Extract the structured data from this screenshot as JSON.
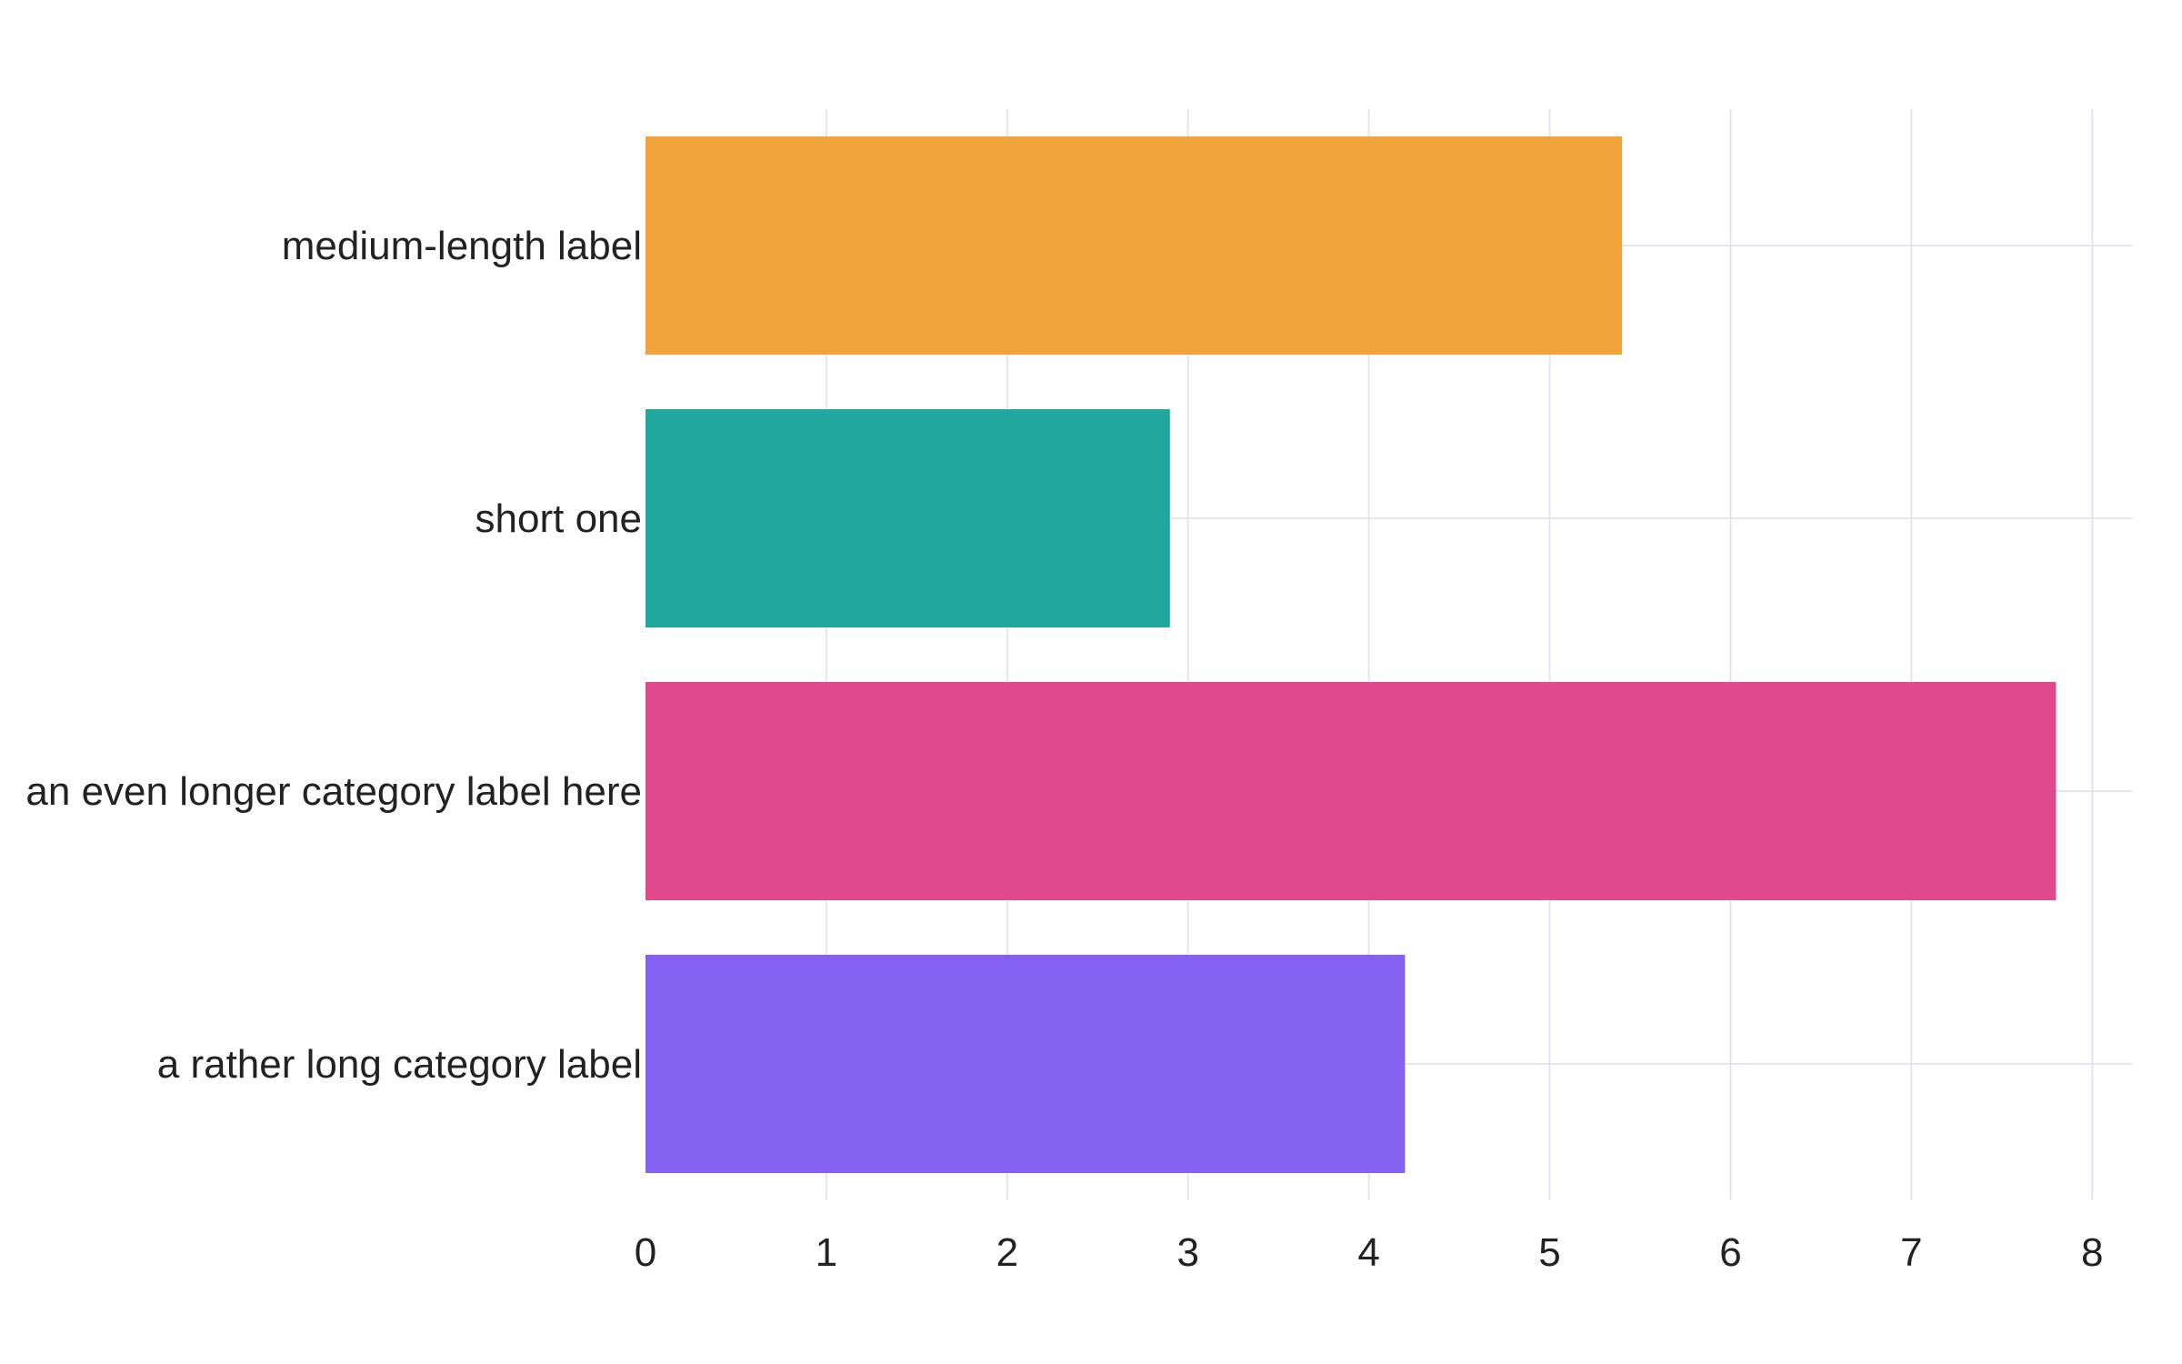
{
  "chart_data": {
    "type": "bar",
    "orientation": "horizontal",
    "title": "",
    "xlabel": "",
    "ylabel": "",
    "categories": [
      "medium-length label",
      "short one",
      "an even longer category label here",
      "a rather long category label"
    ],
    "values": [
      5.4,
      2.9,
      7.8,
      4.2
    ],
    "colors": [
      "#F2A43C",
      "#20A89F",
      "#E04A8C",
      "#8460EE"
    ],
    "xlim": [
      0,
      8.22
    ],
    "xticks": [
      "0",
      "1",
      "2",
      "3",
      "4",
      "5",
      "6",
      "7",
      "8"
    ],
    "grid": true,
    "grid_color": "#E3E5F0",
    "legend": "none"
  }
}
